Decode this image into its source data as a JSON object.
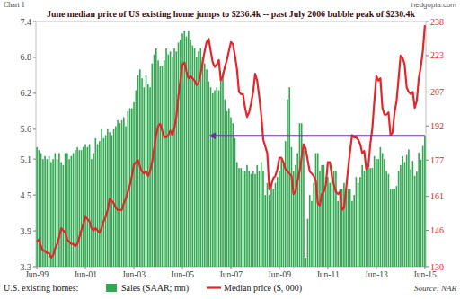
{
  "chart_data": {
    "type": "bar",
    "title": "June median price of US existing home jumps to $236.4k -- past July 2006 bubble peak of $230.4k",
    "chart_label": "Chart 1",
    "watermark": "hedgopia.com",
    "legend_title": "U.S. existing homes:",
    "source": "Source: NAR",
    "legend": "bottom",
    "grid": false,
    "categories": [
      "Jun-99",
      null,
      null,
      null,
      null,
      null,
      null,
      null,
      null,
      null,
      null,
      null,
      null,
      null,
      null,
      null,
      null,
      null,
      null,
      null,
      null,
      null,
      null,
      null,
      "Jun-01",
      null,
      null,
      null,
      null,
      null,
      null,
      null,
      null,
      null,
      null,
      null,
      null,
      null,
      null,
      null,
      null,
      null,
      null,
      null,
      null,
      null,
      null,
      null,
      "Jun-03",
      null,
      null,
      null,
      null,
      null,
      null,
      null,
      null,
      null,
      null,
      null,
      null,
      null,
      null,
      null,
      null,
      null,
      null,
      null,
      null,
      null,
      null,
      null,
      "Jun-05",
      null,
      null,
      null,
      null,
      null,
      null,
      null,
      null,
      null,
      null,
      null,
      null,
      null,
      null,
      null,
      null,
      null,
      null,
      null,
      null,
      null,
      null,
      null,
      "Jun-07",
      null,
      null,
      null,
      null,
      null,
      null,
      null,
      null,
      null,
      null,
      null,
      null,
      null,
      null,
      null,
      null,
      null,
      null,
      null,
      null,
      null,
      null,
      null,
      "Jun-09",
      null,
      null,
      null,
      null,
      null,
      null,
      null,
      null,
      null,
      null,
      null,
      null,
      null,
      null,
      null,
      null,
      null,
      null,
      null,
      null,
      null,
      null,
      null,
      "Jun-11",
      null,
      null,
      null,
      null,
      null,
      null,
      null,
      null,
      null,
      null,
      null,
      null,
      null,
      null,
      null,
      null,
      null,
      null,
      null,
      null,
      null,
      null,
      null,
      "Jun-13",
      null,
      null,
      null,
      null,
      null,
      null,
      null,
      null,
      null,
      null,
      null,
      null,
      null,
      null,
      null,
      null,
      null,
      null,
      null,
      null,
      null,
      null,
      null,
      "Jun-15"
    ],
    "series": [
      {
        "name": "Sales (SAAR; mn)",
        "type": "bar",
        "color": "#33a852",
        "values": [
          5.3,
          5.25,
          5.2,
          5.1,
          5.15,
          5.1,
          5.15,
          5.05,
          5.1,
          5.2,
          5.1,
          5.2,
          5.05,
          5.0,
          5.2,
          5.2,
          5.1,
          5.15,
          5.2,
          5.25,
          5.3,
          5.25,
          5.25,
          5.3,
          5.35,
          5.3,
          5.35,
          5.1,
          5.2,
          5.45,
          5.35,
          5.4,
          5.6,
          5.45,
          5.5,
          5.6,
          5.55,
          5.5,
          5.6,
          5.65,
          5.75,
          5.7,
          5.75,
          5.8,
          5.65,
          5.9,
          5.95,
          5.95,
          6.05,
          6.25,
          6.5,
          6.6,
          6.45,
          6.3,
          6.5,
          6.35,
          6.3,
          6.7,
          6.85,
          6.95,
          6.75,
          6.65,
          6.65,
          6.75,
          6.95,
          6.85,
          6.9,
          6.8,
          6.95,
          6.9,
          7.05,
          7.1,
          7.2,
          7.25,
          7.15,
          7.25,
          7.1,
          7.0,
          6.95,
          6.8,
          6.9,
          6.95,
          6.8,
          6.7,
          6.6,
          6.4,
          6.3,
          6.2,
          6.25,
          6.3,
          6.25,
          6.4,
          6.55,
          6.1,
          5.9,
          5.95,
          5.8,
          5.7,
          5.45,
          5.05,
          4.95,
          4.95,
          4.9,
          4.9,
          5.0,
          4.9,
          4.85,
          4.9,
          4.85,
          5.0,
          4.9,
          5.05,
          4.9,
          4.5,
          4.7,
          4.5,
          4.7,
          4.6,
          4.7,
          4.8,
          4.9,
          5.1,
          5.05,
          5.4,
          6.1,
          6.3,
          5.3,
          4.9,
          5.0,
          5.2,
          5.7,
          5.7,
          5.3,
          3.45,
          4.1,
          4.5,
          4.4,
          4.7,
          5.2,
          5.2,
          4.9,
          5.0,
          5.0,
          4.8,
          4.8,
          4.7,
          5.0,
          4.9,
          4.9,
          4.4,
          4.6,
          4.6,
          4.7,
          4.6,
          4.6,
          4.6,
          4.4,
          4.5,
          4.8,
          4.7,
          4.8,
          5.0,
          4.9,
          4.95,
          4.95,
          4.95,
          4.95,
          5.15,
          5.1,
          5.1,
          5.3,
          5.2,
          5.1,
          4.9,
          4.85,
          4.6,
          4.6,
          4.6,
          4.65,
          4.9,
          5.0,
          5.15,
          5.05,
          5.17,
          5.26,
          4.93,
          5.07,
          4.82,
          4.89,
          5.21,
          5.09,
          5.32,
          5.49
        ]
      },
      {
        "name": "Median price ($, 000)",
        "type": "line",
        "axis": "y2",
        "color": "#e3262b",
        "values": [
          141,
          142,
          139,
          137,
          137,
          136,
          136,
          134,
          135,
          138,
          140,
          143,
          147,
          146,
          145,
          142,
          141,
          140,
          140,
          139,
          140,
          143,
          146,
          149,
          152,
          151,
          150,
          147,
          146,
          147,
          146,
          145,
          147,
          150,
          152,
          155,
          160,
          159,
          158,
          156,
          155,
          155,
          155,
          158,
          160,
          163,
          166,
          170,
          175,
          176,
          177,
          174,
          172,
          171,
          172,
          170,
          172,
          176,
          182,
          188,
          192,
          193,
          190,
          187,
          187,
          188,
          190,
          188,
          191,
          196,
          205,
          212,
          219,
          220,
          216,
          213,
          214,
          213,
          212,
          210,
          211,
          215,
          220,
          225,
          229,
          230.4,
          225,
          220,
          218,
          219,
          221,
          212,
          214,
          218,
          221,
          225,
          229,
          228,
          223,
          217,
          207,
          206,
          206,
          200,
          196,
          198,
          202,
          207,
          215,
          212,
          205,
          197,
          186,
          183,
          180,
          164,
          166,
          169,
          170,
          173,
          178,
          178,
          176,
          173,
          172,
          171,
          170,
          162,
          163,
          168,
          172,
          178,
          184,
          182,
          177,
          172,
          171,
          170,
          168,
          158,
          157,
          162,
          163,
          166,
          176,
          176,
          170,
          166,
          163,
          162,
          163,
          155,
          156,
          164,
          173,
          181,
          188,
          187,
          187,
          186,
          184,
          180,
          181,
          173,
          174,
          184,
          191,
          203,
          214,
          212,
          213,
          200,
          197,
          197,
          198,
          188,
          189,
          198,
          203,
          213,
          223,
          222,
          219,
          209,
          207,
          206,
          207,
          200,
          203,
          213,
          218,
          225,
          236.4
        ]
      }
    ],
    "ylim": [
      3.3,
      7.4
    ],
    "yticks": [
      3.3,
      3.9,
      4.5,
      5.1,
      5.6,
      6.2,
      6.8,
      7.4
    ],
    "y2lim": [
      130,
      238
    ],
    "y2ticks": [
      130,
      146,
      161,
      177,
      192,
      207,
      223,
      238
    ]
  }
}
